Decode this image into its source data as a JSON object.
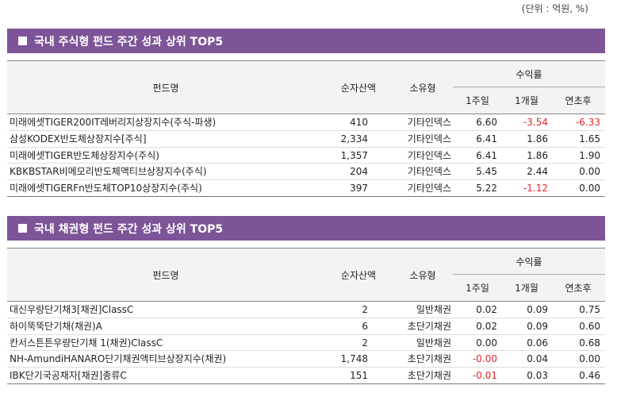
{
  "unit_label": "(단위 : 억원, %)",
  "columns": {
    "name": "펀드명",
    "assets": "순자산액",
    "type": "소유형",
    "returns": "수익률",
    "week1": "1주일",
    "month1": "1개월",
    "ytd": "연초후"
  },
  "colors": {
    "section_bar": "#7d5497",
    "negative": "#e0282a"
  },
  "sections": [
    {
      "title": "국내 주식형 펀드 주간 성과 상위 TOP5",
      "rows": [
        {
          "name": "미래에셋TIGER200IT레버리지상장지수(주식-파생)",
          "assets": "410",
          "type": "기타인덱스",
          "w1": "6.60",
          "m1": "-3.54",
          "ytd": "-6.33"
        },
        {
          "name": "삼성KODEX반도체상장지수[주식]",
          "assets": "2,334",
          "type": "기타인덱스",
          "w1": "6.41",
          "m1": "1.86",
          "ytd": "1.65"
        },
        {
          "name": "미래에셋TIGER반도체상장지수(주식)",
          "assets": "1,357",
          "type": "기타인덱스",
          "w1": "6.41",
          "m1": "1.86",
          "ytd": "1.90"
        },
        {
          "name": "KBKBSTAR비메모리반도체액티브상장지수(주식)",
          "assets": "204",
          "type": "기타인덱스",
          "w1": "5.45",
          "m1": "2.44",
          "ytd": "0.00"
        },
        {
          "name": "미래에셋TIGERFn반도체TOP10상장지수(주식)",
          "assets": "397",
          "type": "기타인덱스",
          "w1": "5.22",
          "m1": "-1.12",
          "ytd": "0.00"
        }
      ]
    },
    {
      "title": "국내 채권형 펀드 주간 성과 상위 TOP5",
      "rows": [
        {
          "name": "대신우량단기채3[채권]ClassC",
          "assets": "2",
          "type": "일반채권",
          "w1": "0.02",
          "m1": "0.09",
          "ytd": "0.75"
        },
        {
          "name": "하이뚝뚝단기채(채권)A",
          "assets": "6",
          "type": "초단기채권",
          "w1": "0.02",
          "m1": "0.09",
          "ytd": "0.60"
        },
        {
          "name": "칸서스튼튼우량단기채 1(채권)ClassC",
          "assets": "2",
          "type": "일반채권",
          "w1": "0.00",
          "m1": "0.06",
          "ytd": "0.68"
        },
        {
          "name": "NH-AmundiHANARO단기채권액티브상장지수(채권)",
          "assets": "1,748",
          "type": "초단기채권",
          "w1": "-0.00",
          "m1": "0.04",
          "ytd": "0.00"
        },
        {
          "name": "IBK단기국공채자[채권]종류C",
          "assets": "151",
          "type": "초단기채권",
          "w1": "-0.01",
          "m1": "0.03",
          "ytd": "0.46"
        }
      ]
    }
  ]
}
